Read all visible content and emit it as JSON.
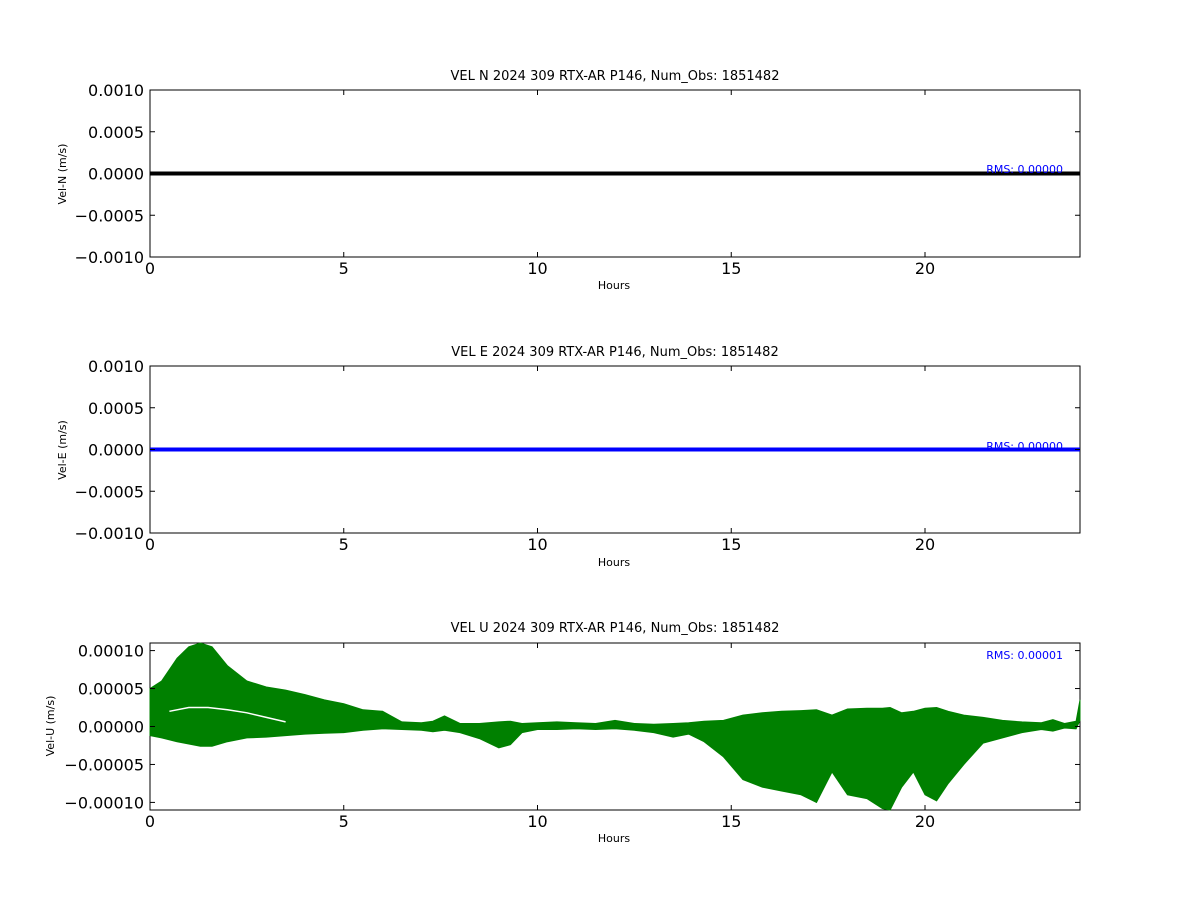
{
  "chart_data": [
    {
      "type": "line",
      "title": "VEL N 2024 309 RTX-AR  P146, Num_Obs: 1851482",
      "xlabel": "Hours",
      "ylabel": "Vel-N (m/s)",
      "xlim": [
        0,
        24
      ],
      "ylim": [
        -0.001,
        0.001
      ],
      "xticks": [
        0,
        5,
        10,
        15,
        20
      ],
      "xtick_labels": [
        "0",
        "5",
        "10",
        "15",
        "20"
      ],
      "yticks": [
        0.001,
        0.0005,
        0,
        -0.0005,
        -0.001
      ],
      "ytick_labels": [
        "0.0010",
        "0.0005",
        "0.0000",
        "−0.0005",
        "−0.0010"
      ],
      "grid": false,
      "color": "#000000",
      "annotation": "RMS:  0.00000",
      "annotation_color": "#0000ff",
      "series": [
        {
          "x": [
            0,
            24
          ],
          "y": [
            0,
            0
          ]
        }
      ]
    },
    {
      "type": "line",
      "title": "VEL E 2024 309 RTX-AR  P146, Num_Obs: 1851482",
      "xlabel": "Hours",
      "ylabel": "Vel-E (m/s)",
      "xlim": [
        0,
        24
      ],
      "ylim": [
        -0.001,
        0.001
      ],
      "xticks": [
        0,
        5,
        10,
        15,
        20
      ],
      "xtick_labels": [
        "0",
        "5",
        "10",
        "15",
        "20"
      ],
      "yticks": [
        0.001,
        0.0005,
        0,
        -0.0005,
        -0.001
      ],
      "ytick_labels": [
        "0.0010",
        "0.0005",
        "0.0000",
        "−0.0005",
        "−0.0010"
      ],
      "grid": false,
      "color": "#0000ff",
      "annotation": "RMS:  0.00000",
      "annotation_color": "#0000ff",
      "series": [
        {
          "x": [
            0,
            24
          ],
          "y": [
            0,
            0
          ]
        }
      ]
    },
    {
      "type": "area",
      "title": "VEL U 2024 309 RTX-AR  P146, Num_Obs: 1851482",
      "xlabel": "Hours",
      "ylabel": "Vel-U (m/s)",
      "xlim": [
        0,
        24
      ],
      "ylim": [
        -0.00011,
        0.00011
      ],
      "xticks": [
        0,
        5,
        10,
        15,
        20
      ],
      "xtick_labels": [
        "0",
        "5",
        "10",
        "15",
        "20"
      ],
      "yticks": [
        0.0001,
        5e-05,
        0,
        -5e-05,
        -0.0001
      ],
      "ytick_labels": [
        "0.00010",
        "0.00005",
        "0.00000",
        "−0.00005",
        "−0.00010"
      ],
      "grid": false,
      "color": "#008000",
      "annotation": "RMS:  0.00001",
      "annotation_color": "#0000ff",
      "envelope": {
        "x": [
          0,
          0.3,
          0.7,
          1.0,
          1.3,
          1.6,
          2.0,
          2.5,
          3.0,
          3.5,
          4.0,
          4.5,
          5.0,
          5.5,
          6.0,
          6.5,
          7.0,
          7.3,
          7.6,
          8.0,
          8.5,
          9.0,
          9.3,
          9.6,
          10.0,
          10.5,
          11.0,
          11.5,
          12.0,
          12.5,
          13.0,
          13.5,
          13.9,
          14.3,
          14.8,
          15.3,
          15.8,
          16.3,
          16.8,
          17.2,
          17.6,
          18.0,
          18.5,
          18.9,
          19.1,
          19.4,
          19.7,
          20.0,
          20.3,
          20.6,
          21.0,
          21.5,
          22.0,
          22.5,
          23.0,
          23.3,
          23.6,
          23.9,
          24.0
        ],
        "upper": [
          5e-05,
          6e-05,
          9e-05,
          0.000105,
          0.00011,
          0.000105,
          8e-05,
          6e-05,
          5.2e-05,
          4.8e-05,
          4.2e-05,
          3.5e-05,
          3e-05,
          2.2e-05,
          2e-05,
          6e-06,
          5e-06,
          7e-06,
          1.4e-05,
          4e-06,
          4e-06,
          6e-06,
          7e-06,
          4e-06,
          5e-06,
          6e-06,
          5e-06,
          4e-06,
          8e-06,
          4e-06,
          3e-06,
          4e-06,
          5e-06,
          7e-06,
          8e-06,
          1.5e-05,
          1.8e-05,
          2e-05,
          2.1e-05,
          2.2e-05,
          1.5e-05,
          2.3e-05,
          2.4e-05,
          2.4e-05,
          2.5e-05,
          1.8e-05,
          2e-05,
          2.4e-05,
          2.5e-05,
          2e-05,
          1.5e-05,
          1.2e-05,
          8e-06,
          6e-06,
          5e-06,
          9e-06,
          4e-06,
          7e-06,
          3.5e-05
        ],
        "lower": [
          -1.2e-05,
          -1.5e-05,
          -2e-05,
          -2.3e-05,
          -2.6e-05,
          -2.6e-05,
          -2e-05,
          -1.5e-05,
          -1.4e-05,
          -1.2e-05,
          -1e-05,
          -9e-06,
          -8e-06,
          -5e-06,
          -3e-06,
          -4e-06,
          -5e-06,
          -7e-06,
          -5e-06,
          -8e-06,
          -1.6e-05,
          -2.8e-05,
          -2.4e-05,
          -8e-06,
          -4e-06,
          -4e-06,
          -3e-06,
          -4e-06,
          -3e-06,
          -5e-06,
          -8e-06,
          -1.4e-05,
          -1e-05,
          -2e-05,
          -4e-05,
          -7e-05,
          -8e-05,
          -8.5e-05,
          -9e-05,
          -0.0001,
          -6e-05,
          -9e-05,
          -9.5e-05,
          -0.000108,
          -0.00011,
          -8e-05,
          -6e-05,
          -9e-05,
          -9.8e-05,
          -7.5e-05,
          -5e-05,
          -2.2e-05,
          -1.5e-05,
          -8e-06,
          -4e-06,
          -6e-06,
          -2e-06,
          -3e-06,
          8e-06
        ]
      },
      "inner_band": {
        "x": [
          0.5,
          1.0,
          1.5,
          2.0,
          2.5,
          3.0,
          3.5
        ],
        "y": [
          2e-05,
          2.5e-05,
          2.5e-05,
          2.2e-05,
          1.8e-05,
          1.2e-05,
          6e-06
        ]
      }
    }
  ]
}
